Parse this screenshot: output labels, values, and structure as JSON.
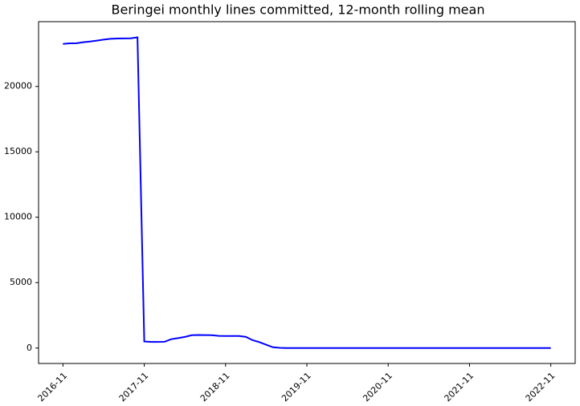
{
  "chart_data": {
    "type": "line",
    "title": "Beringei monthly lines committed, 12-month rolling mean",
    "x": [
      "2016-11",
      "2016-12",
      "2017-01",
      "2017-02",
      "2017-03",
      "2017-04",
      "2017-05",
      "2017-06",
      "2017-07",
      "2017-08",
      "2017-09",
      "2017-10",
      "2017-11",
      "2017-12",
      "2018-01",
      "2018-02",
      "2018-03",
      "2018-04",
      "2018-05",
      "2018-06",
      "2018-07",
      "2018-08",
      "2018-09",
      "2018-10",
      "2018-11",
      "2018-12",
      "2019-01",
      "2019-02",
      "2019-03",
      "2019-04",
      "2019-05",
      "2019-06",
      "2019-07",
      "2019-08",
      "2019-09",
      "2019-10",
      "2019-11",
      "2019-12",
      "2020-01",
      "2020-02",
      "2020-03",
      "2020-04",
      "2020-05",
      "2020-06",
      "2020-07",
      "2020-08",
      "2020-09",
      "2020-10",
      "2020-11",
      "2020-12",
      "2021-01",
      "2021-02",
      "2021-03",
      "2021-04",
      "2021-05",
      "2021-06",
      "2021-07",
      "2021-08",
      "2021-09",
      "2021-10",
      "2021-11",
      "2021-12",
      "2022-01",
      "2022-02",
      "2022-03",
      "2022-04",
      "2022-05",
      "2022-06",
      "2022-07",
      "2022-08",
      "2022-09",
      "2022-10",
      "2022-11"
    ],
    "values": [
      23250,
      23290,
      23300,
      23380,
      23430,
      23500,
      23580,
      23640,
      23660,
      23670,
      23680,
      23750,
      500,
      470,
      470,
      480,
      680,
      760,
      850,
      980,
      1000,
      990,
      980,
      930,
      920,
      920,
      920,
      850,
      600,
      450,
      250,
      60,
      20,
      0,
      0,
      0,
      0,
      0,
      0,
      0,
      0,
      0,
      0,
      0,
      0,
      0,
      0,
      0,
      0,
      0,
      0,
      0,
      0,
      0,
      0,
      0,
      0,
      0,
      0,
      0,
      0,
      0,
      0,
      0,
      0,
      0,
      0,
      0,
      0,
      0,
      0,
      0,
      0
    ],
    "color": "#0000ff",
    "ylim": [
      -1180,
      24950
    ],
    "yticks": [
      0,
      5000,
      10000,
      15000,
      20000
    ],
    "xticks": [
      "2016-11",
      "2017-11",
      "2018-11",
      "2019-11",
      "2020-11",
      "2021-11",
      "2022-11"
    ],
    "grid": false
  }
}
